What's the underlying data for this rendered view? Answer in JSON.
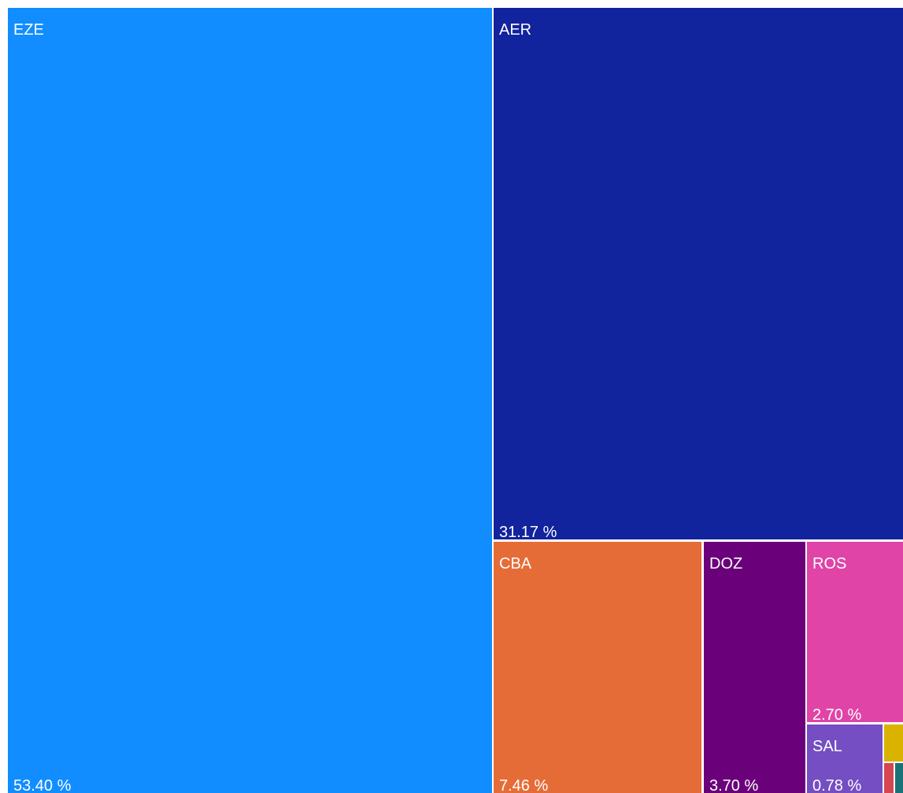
{
  "chart_data": {
    "type": "treemap",
    "title": "",
    "items": [
      {
        "name": "EZE",
        "value": 53.4,
        "value_label": "53.40 %",
        "color": "#118DFF"
      },
      {
        "name": "AER",
        "value": 31.17,
        "value_label": "31.17 %",
        "color": "#12239E"
      },
      {
        "name": "CBA",
        "value": 7.46,
        "value_label": "7.46 %",
        "color": "#E66C37"
      },
      {
        "name": "DOZ",
        "value": 3.7,
        "value_label": "3.70 %",
        "color": "#6B007B"
      },
      {
        "name": "ROS",
        "value": 2.7,
        "value_label": "2.70 %",
        "color": "#E044A7"
      },
      {
        "name": "SAL",
        "value": 0.78,
        "value_label": "0.78 %",
        "color": "#744EC2"
      },
      {
        "name": "",
        "value": 0.4,
        "value_label": "",
        "color": "#D9B300"
      },
      {
        "name": "",
        "value": 0.2,
        "value_label": "",
        "color": "#D64550"
      },
      {
        "name": "",
        "value": 0.19,
        "value_label": "",
        "color": "#197278"
      }
    ]
  }
}
